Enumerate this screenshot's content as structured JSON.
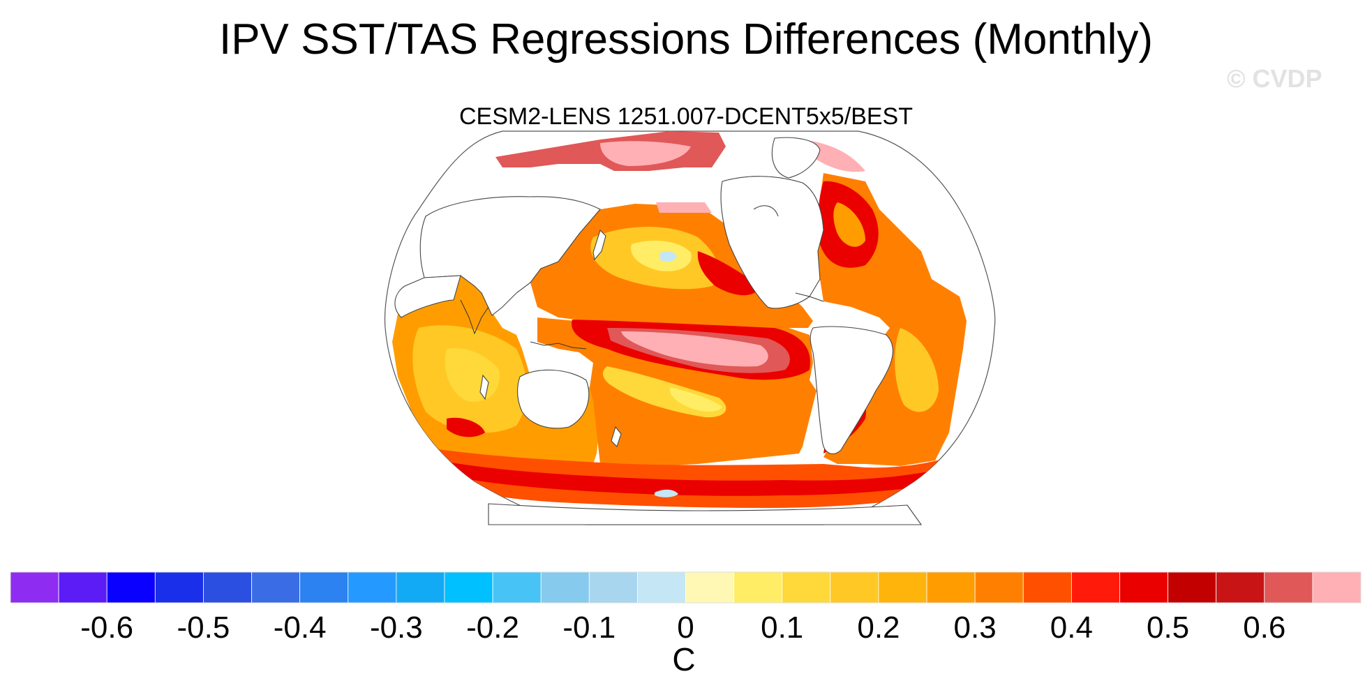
{
  "figure": {
    "title": "IPV SST/TAS Regressions Differences (Monthly)",
    "subtitle": "CESM2-LENS 1251.007-DCENT5x5/BEST",
    "watermark": "© CVDP"
  },
  "colorbar": {
    "units": "C",
    "colors": [
      "#8f2cf2",
      "#5b1cf5",
      "#0a00ff",
      "#1a2fea",
      "#2b4fe0",
      "#3a6de5",
      "#2b82f0",
      "#2499ff",
      "#13aaf5",
      "#00c0ff",
      "#47c3f5",
      "#86cbee",
      "#a8d6ef",
      "#c5e6f5",
      "#fff8b4",
      "#ffed66",
      "#ffd83a",
      "#ffc825",
      "#ffb40b",
      "#ff9d00",
      "#ff8000",
      "#ff5000",
      "#ff1a0a",
      "#eb0000",
      "#c30000",
      "#c81414",
      "#e05858",
      "#ffb0b4"
    ],
    "tick_labels": [
      "-0.6",
      "-0.5",
      "-0.4",
      "-0.3",
      "-0.2",
      "-0.1",
      "0",
      "0.1",
      "0.2",
      "0.3",
      "0.4",
      "0.5",
      "0.6"
    ]
  },
  "map": {
    "projection": "robinson",
    "field": "sst_tas_regression_difference",
    "ocean_colors": {
      "background_warm": "#ff9d00",
      "strong": "#eb0000",
      "very_strong": "#c30000",
      "peak": "#ffb0b4",
      "moderate": "#ffc825",
      "weak": "#ffed66",
      "near_zero": "#c5e6f5"
    }
  }
}
